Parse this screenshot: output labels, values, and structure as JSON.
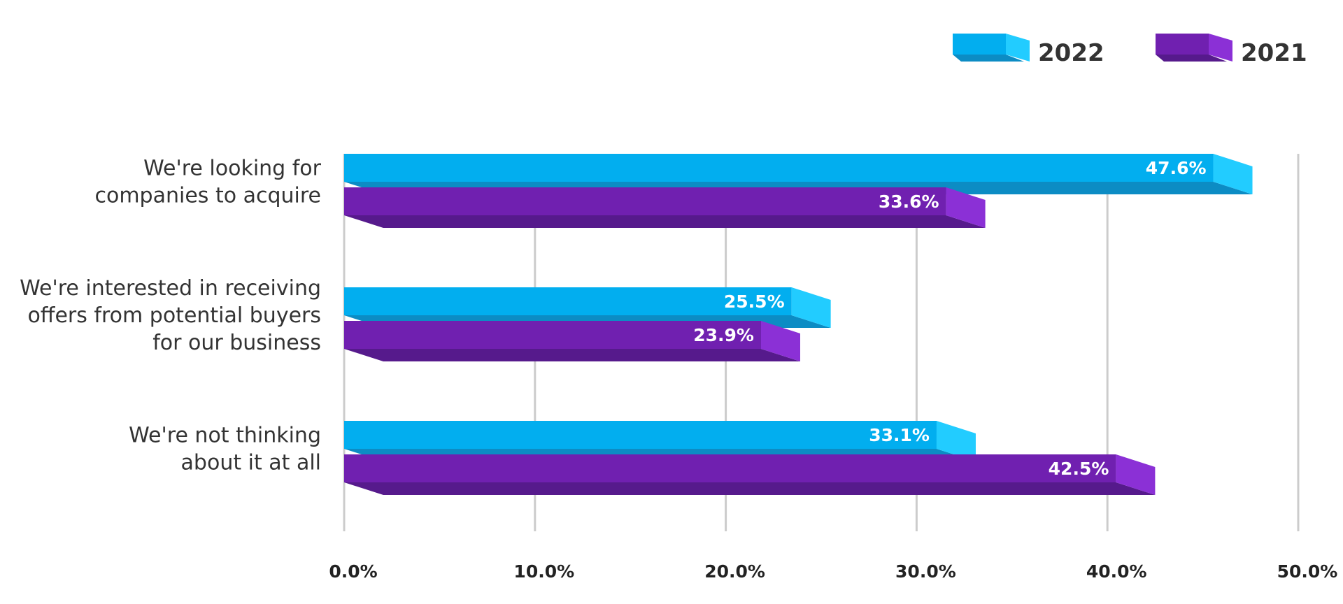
{
  "chart_data": {
    "type": "bar",
    "orientation": "horizontal",
    "categories": [
      [
        "We're looking for",
        "companies to acquire"
      ],
      [
        "We're interested in receiving",
        "offers from potential buyers",
        "for our business"
      ],
      [
        "We're not thinking",
        "about it at all"
      ]
    ],
    "series": [
      {
        "name": "2022",
        "values": [
          47.6,
          25.5,
          33.1
        ],
        "labels": [
          "47.6%",
          "25.5%",
          "33.1%"
        ],
        "color": "#02AEEF",
        "side_color": "#22CCFF",
        "bottom_color": "#0C8CC4"
      },
      {
        "name": "2021",
        "values": [
          33.6,
          23.9,
          42.5
        ],
        "labels": [
          "33.6%",
          "23.9%",
          "42.5%"
        ],
        "color": "#7020B0",
        "side_color": "#8B30D6",
        "bottom_color": "#561A8C"
      }
    ],
    "xlim": [
      0,
      50
    ],
    "xticks": [
      0,
      10,
      20,
      30,
      40,
      50
    ],
    "xtick_labels": [
      "0.0%",
      "10.0%",
      "20.0%",
      "30.0%",
      "40.0%",
      "50.0%"
    ],
    "grid": true,
    "legend": "top-right",
    "title": "",
    "xlabel": "",
    "ylabel": ""
  }
}
